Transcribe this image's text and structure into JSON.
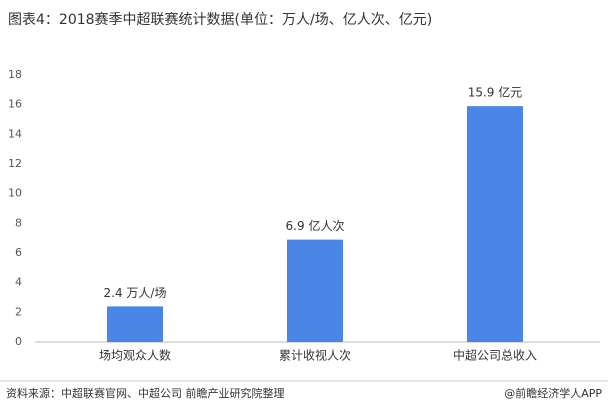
{
  "chart_data": {
    "type": "bar",
    "title": "图表4：2018赛季中超联赛统计数据(单位：万人/场、亿人次、亿元)",
    "categories": [
      "场均观众人数",
      "累计收视人次",
      "中超公司总收入"
    ],
    "values": [
      2.4,
      6.9,
      15.9
    ],
    "value_labels": [
      "2.4 万人/场",
      "6.9 亿人次",
      "15.9 亿元"
    ],
    "color": "#4a86e8",
    "ylim": [
      0,
      18
    ],
    "yticks": [
      0,
      2,
      4,
      6,
      8,
      10,
      12,
      14,
      16,
      18
    ],
    "grid": false,
    "source": "资料来源：中超联赛官网、中超公司 前瞻产业研究院整理",
    "credit": "@前瞻经济学人APP"
  }
}
